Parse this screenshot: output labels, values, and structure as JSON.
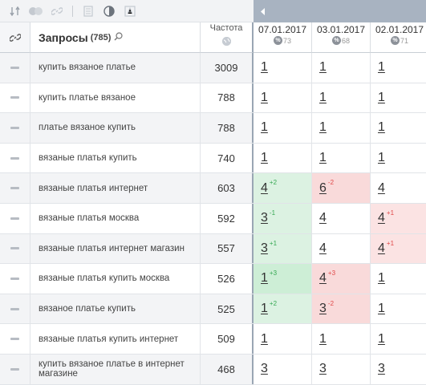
{
  "toolbar": {
    "icons": [
      "sort-icon",
      "toggle-icon",
      "link-icon",
      "document-icon",
      "contrast-icon",
      "text-icon"
    ]
  },
  "header": {
    "query_title": "Запросы",
    "query_count": "(785)",
    "freq_label": "Частота",
    "dates": [
      {
        "date": "07.01.2017",
        "count": "73"
      },
      {
        "date": "03.01.2017",
        "count": "68"
      },
      {
        "date": "02.01.2017",
        "count": "71"
      }
    ],
    "pct_symbol": "%"
  },
  "rows": [
    {
      "query": "купить вязаное платье",
      "freq": "3009",
      "p": [
        {
          "v": "1"
        },
        {
          "v": "1"
        },
        {
          "v": "1"
        }
      ]
    },
    {
      "query": "купить платье вязаное",
      "freq": "788",
      "p": [
        {
          "v": "1"
        },
        {
          "v": "1"
        },
        {
          "v": "1"
        }
      ]
    },
    {
      "query": "платье вязаное купить",
      "freq": "788",
      "p": [
        {
          "v": "1"
        },
        {
          "v": "1"
        },
        {
          "v": "1"
        }
      ]
    },
    {
      "query": "вязаные платья купить",
      "freq": "740",
      "p": [
        {
          "v": "1"
        },
        {
          "v": "1"
        },
        {
          "v": "1"
        }
      ]
    },
    {
      "query": "вязаные платья интернет",
      "freq": "603",
      "p": [
        {
          "v": "4",
          "d": "+2",
          "t": "up"
        },
        {
          "v": "6",
          "d": "-2",
          "t": "down"
        },
        {
          "v": "4"
        }
      ]
    },
    {
      "query": "вязаные платья москва",
      "freq": "592",
      "p": [
        {
          "v": "3",
          "d": "-1",
          "t": "down"
        },
        {
          "v": "4"
        },
        {
          "v": "4",
          "d": "+1",
          "t": "down"
        }
      ]
    },
    {
      "query": "вязаные платья интернет магазин",
      "freq": "557",
      "p": [
        {
          "v": "3",
          "d": "+1",
          "t": "up"
        },
        {
          "v": "4"
        },
        {
          "v": "4",
          "d": "+1",
          "t": "down"
        }
      ]
    },
    {
      "query": "вязаные платья купить москва",
      "freq": "526",
      "p": [
        {
          "v": "1",
          "d": "+3",
          "t": "up"
        },
        {
          "v": "4",
          "d": "+3",
          "t": "down"
        },
        {
          "v": "1"
        }
      ]
    },
    {
      "query": "вязаное платье купить",
      "freq": "525",
      "p": [
        {
          "v": "1",
          "d": "+2",
          "t": "up"
        },
        {
          "v": "3",
          "d": "-2",
          "t": "down"
        },
        {
          "v": "1"
        }
      ]
    },
    {
      "query": "вязаные платья купить интернет",
      "freq": "509",
      "p": [
        {
          "v": "1"
        },
        {
          "v": "1"
        },
        {
          "v": "1"
        }
      ]
    },
    {
      "query": "купить вязаное платье в интернет магазине",
      "freq": "468",
      "p": [
        {
          "v": "3"
        },
        {
          "v": "3"
        },
        {
          "v": "3"
        }
      ]
    }
  ],
  "colors": {
    "up": "#35a852",
    "down": "#e04646",
    "up_bg": "#dcf2e2",
    "down_bg": "#fbe3e3"
  }
}
